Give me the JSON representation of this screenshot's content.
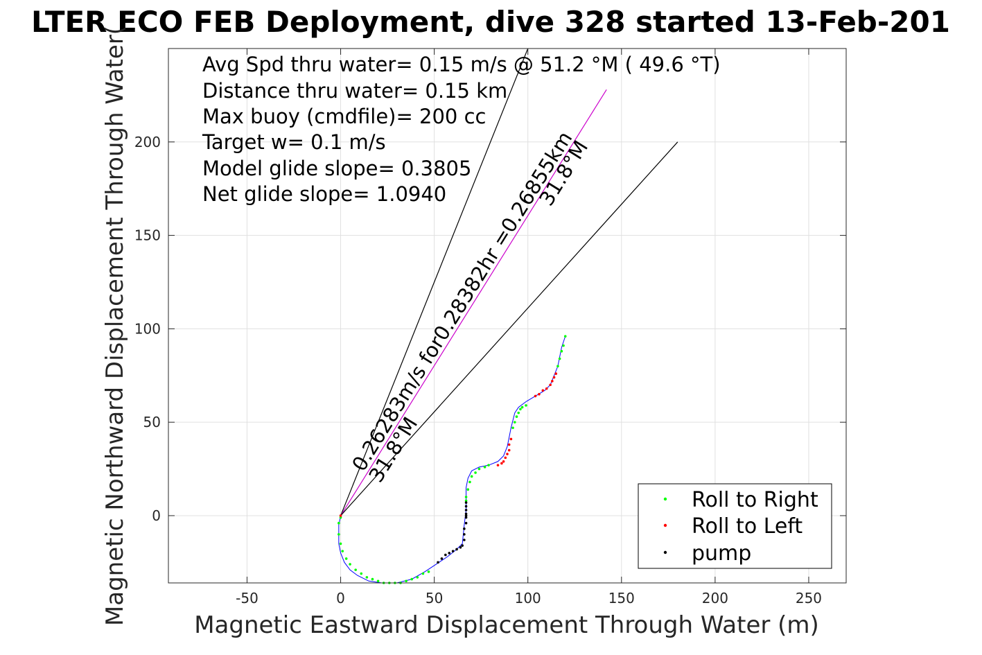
{
  "chart_data": {
    "type": "scatter",
    "title": "LTER ECO FEB Deployment, dive 328 started 13-Feb-201",
    "xlabel": "Magnetic Eastward Displacement Through Water (m)",
    "ylabel": "Magnetic Northward Displacement Through Water(",
    "xlim": [
      -92,
      270
    ],
    "ylim": [
      -36,
      250
    ],
    "xticks": [
      -50,
      0,
      50,
      100,
      150,
      200,
      250
    ],
    "yticks": [
      0,
      50,
      100,
      150,
      200
    ],
    "xtick_labels": [
      "-50",
      "0",
      "50",
      "100",
      "150",
      "200",
      "250"
    ],
    "ytick_labels": [
      "0",
      "50",
      "100",
      "150",
      "200"
    ],
    "grid": true,
    "legend_position": "bottom-right",
    "info_lines": [
      "Avg Spd thru water=  0.15 m/s @  51.2 °M ( 49.6 °T)",
      "Distance thru water=  0.15 km",
      "Max buoy (cmdfile)= 200 cc",
      "Target w= 0.1 m/s",
      "Model glide slope= 0.3805",
      "Net glide slope= 1.0940"
    ],
    "annotations": [
      {
        "text": "0.26283m/s for0.28382hr =0.26855km",
        "x": 12,
        "y": 23,
        "angle_deg": -58
      },
      {
        "text": "31.8°M",
        "x": 21,
        "y": 17,
        "angle_deg": -58
      },
      {
        "text": "31.8°M",
        "x": 112,
        "y": 165,
        "angle_deg": -58
      }
    ],
    "reference_lines": [
      {
        "name": "bearing-line-upper",
        "color": "#000000",
        "x": [
          0,
          100
        ],
        "y": [
          0,
          250
        ]
      },
      {
        "name": "heading-line",
        "color": "#cc00cc",
        "x": [
          0,
          142
        ],
        "y": [
          0,
          228
        ]
      },
      {
        "name": "bearing-line-lower",
        "color": "#000000",
        "x": [
          0,
          180
        ],
        "y": [
          0,
          200
        ]
      }
    ],
    "track": {
      "color": "#0000ff",
      "x": [
        0,
        -1,
        -1,
        -1,
        0,
        2,
        5,
        9,
        15,
        22,
        30,
        38,
        45,
        51,
        57,
        62,
        65,
        66,
        67,
        67,
        67,
        68,
        70,
        74,
        79,
        84,
        87,
        89,
        90,
        91,
        92,
        93,
        95,
        99,
        104,
        109,
        112,
        114,
        116,
        117,
        118,
        120
      ],
      "y": [
        0,
        -5,
        -10,
        -15,
        -20,
        -25,
        -29,
        -32,
        -35,
        -36,
        -36,
        -34,
        -30,
        -26,
        -22,
        -18,
        -15,
        -5,
        3,
        10,
        15,
        20,
        24,
        26,
        27,
        29,
        32,
        37,
        42,
        47,
        51,
        55,
        58,
        61,
        64,
        67,
        70,
        75,
        80,
        85,
        90,
        96
      ]
    },
    "series": [
      {
        "name": "Roll to Right",
        "color": "#00ff00",
        "x": [
          0,
          -1,
          -1,
          0,
          1,
          3,
          5,
          8,
          11,
          14,
          17,
          20,
          23,
          26,
          29,
          32,
          35,
          38,
          41,
          44,
          47,
          67,
          67,
          68,
          69,
          70,
          72,
          74,
          77,
          79,
          92,
          93,
          94,
          95,
          96,
          97,
          99,
          116,
          117,
          118,
          119,
          120
        ],
        "y": [
          -1,
          -4,
          -10,
          -15,
          -19,
          -23,
          -26,
          -29,
          -31,
          -33,
          -34,
          -35,
          -36,
          -36,
          -36,
          -36,
          -35,
          -34,
          -33,
          -31,
          -30,
          8,
          10,
          14,
          18,
          21,
          23,
          25,
          26,
          27,
          47,
          50,
          53,
          55,
          57,
          58,
          59,
          80,
          84,
          88,
          91,
          96
        ]
      },
      {
        "name": "Roll to Left",
        "color": "#ff0000",
        "x": [
          0,
          84,
          86,
          87,
          88,
          89,
          90,
          90,
          91,
          104,
          106,
          108,
          110,
          112,
          113,
          114,
          115
        ],
        "y": [
          0,
          27,
          28,
          29,
          31,
          33,
          35,
          38,
          41,
          64,
          65,
          67,
          68,
          70,
          72,
          74,
          76
        ],
        "stroke_only": false
      },
      {
        "name": "pump",
        "color": "#000000",
        "x": [
          52,
          54,
          56,
          58,
          60,
          62,
          64,
          65,
          66,
          66,
          66,
          67,
          67,
          67,
          67,
          67,
          67,
          67
        ],
        "y": [
          -25,
          -23,
          -21,
          -20,
          -19,
          -18,
          -17,
          -16,
          -13,
          -10,
          -7,
          -4,
          -1,
          1,
          3,
          5,
          7,
          0
        ]
      }
    ]
  }
}
